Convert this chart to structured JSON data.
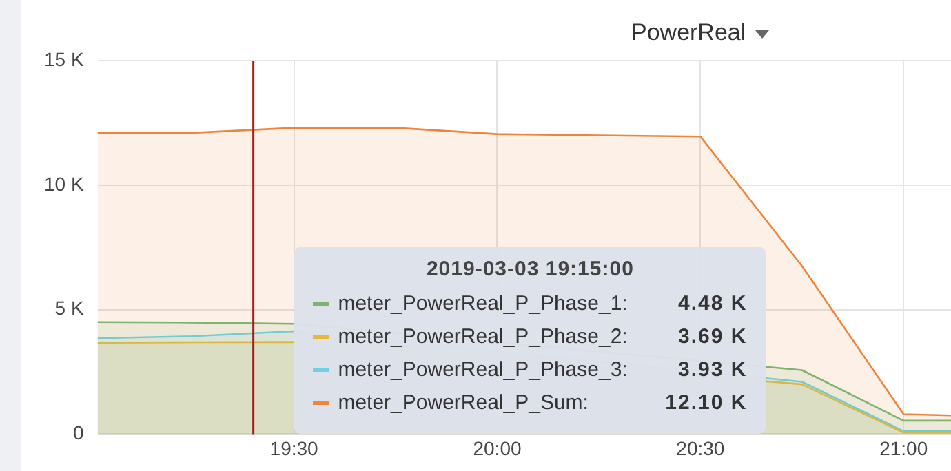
{
  "chart_data": {
    "type": "area",
    "title": "PowerReal",
    "x": [
      "2019-03-03T19:01",
      "2019-03-03T19:15",
      "2019-03-03T19:30",
      "2019-03-03T19:45",
      "2019-03-03T20:00",
      "2019-03-03T20:15",
      "2019-03-03T20:30",
      "2019-03-03T20:45",
      "2019-03-03T21:00",
      "2019-03-03T21:07"
    ],
    "series": [
      {
        "name": "meter_PowerReal_P_Phase_1:",
        "color": "#7eb26d",
        "values": [
          4500,
          4480,
          4430,
          null,
          null,
          null,
          null,
          2570,
          540,
          540
        ]
      },
      {
        "name": "meter_PowerReal_P_Phase_2:",
        "color": "#eab839",
        "values": [
          3670,
          3690,
          3700,
          null,
          null,
          null,
          null,
          2000,
          60,
          60
        ]
      },
      {
        "name": "meter_PowerReal_P_Phase_3:",
        "color": "#6ed0e0",
        "values": [
          3850,
          3930,
          4130,
          null,
          null,
          null,
          null,
          2100,
          120,
          120
        ]
      },
      {
        "name": "meter_PowerReal_P_Sum:",
        "color": "#ef843c",
        "values": [
          12100,
          12100,
          12300,
          12300,
          12050,
          12000,
          11950,
          6750,
          800,
          750
        ]
      }
    ],
    "annotations": [
      "2019-03-03 19:15:00",
      "4.48 K",
      "3.69 K",
      "3.93 K",
      "12.10 K"
    ],
    "xlim": [
      "2019-03-03T19:01",
      "2019-03-03T21:07"
    ],
    "xticks": [
      {
        "value": "2019-03-03T19:30",
        "label": "19:30"
      },
      {
        "value": "2019-03-03T20:00",
        "label": "20:00"
      },
      {
        "value": "2019-03-03T20:30",
        "label": "20:30"
      },
      {
        "value": "2019-03-03T21:00",
        "label": "21:00"
      }
    ],
    "ylim": [
      0,
      15000
    ],
    "yticks": [
      0,
      {
        "value": 5000,
        "label": "5 K"
      },
      {
        "value": 10000,
        "label": "10 K"
      },
      {
        "value": 15000,
        "label": "15 K"
      }
    ],
    "ref_lines": [
      {
        "axis": "x",
        "value": "2019-03-03T19:24",
        "color": "#a3201a"
      }
    ],
    "grid": true,
    "legend": "bottom",
    "marker": "none",
    "line_style": "solid"
  }
}
